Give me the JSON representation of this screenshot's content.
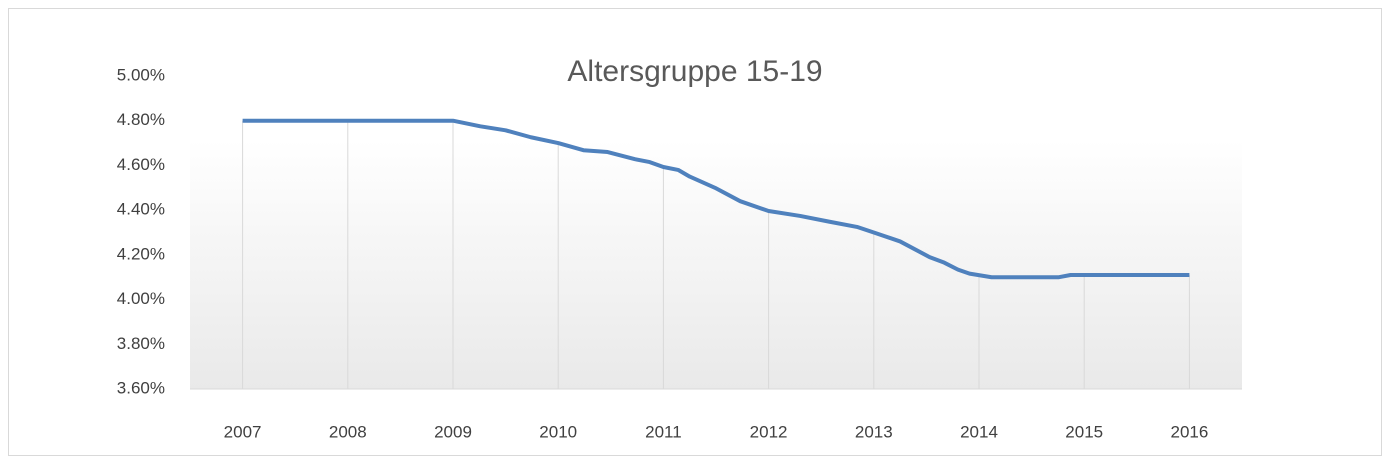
{
  "chart_data": {
    "type": "line",
    "title": "Altersgruppe 15-19",
    "x": [
      2007,
      2009,
      2009.26,
      2009.5,
      2009.74,
      2010,
      2010.24,
      2010.47,
      2010.73,
      2010.87,
      2011,
      2011.14,
      2011.25,
      2011.49,
      2011.73,
      2012,
      2012.3,
      2012.58,
      2012.84,
      2013,
      2013.25,
      2013.53,
      2013.67,
      2013.8,
      2013.91,
      2014.12,
      2014.76,
      2014.87,
      2015,
      2016
    ],
    "series": [
      {
        "name": "Altersgruppe 15-19",
        "color": "#4f81bd",
        "values": [
          4.8,
          4.8,
          4.775,
          4.757,
          4.726,
          4.7,
          4.668,
          4.66,
          4.628,
          4.615,
          4.593,
          4.58,
          4.55,
          4.5,
          4.44,
          4.396,
          4.374,
          4.348,
          4.325,
          4.3,
          4.26,
          4.19,
          4.165,
          4.134,
          4.116,
          4.1,
          4.1,
          4.11,
          4.11,
          4.11
        ]
      }
    ],
    "xlim": [
      2006.5,
      2016.5
    ],
    "xticks": [
      2007,
      2008,
      2009,
      2010,
      2011,
      2012,
      2013,
      2014,
      2015,
      2016
    ],
    "ylim": [
      3.6,
      5.0
    ],
    "yticks": [
      {
        "value": 3.6,
        "label": "3.60%"
      },
      {
        "value": 3.8,
        "label": "3.80%"
      },
      {
        "value": 4.0,
        "label": "4.00%"
      },
      {
        "value": 4.2,
        "label": "4.20%"
      },
      {
        "value": 4.4,
        "label": "4.40%"
      },
      {
        "value": 4.6,
        "label": "4.60%"
      },
      {
        "value": 4.8,
        "label": "4.80%"
      },
      {
        "value": 5.0,
        "label": "5.00%"
      }
    ],
    "drop_lines": true
  }
}
